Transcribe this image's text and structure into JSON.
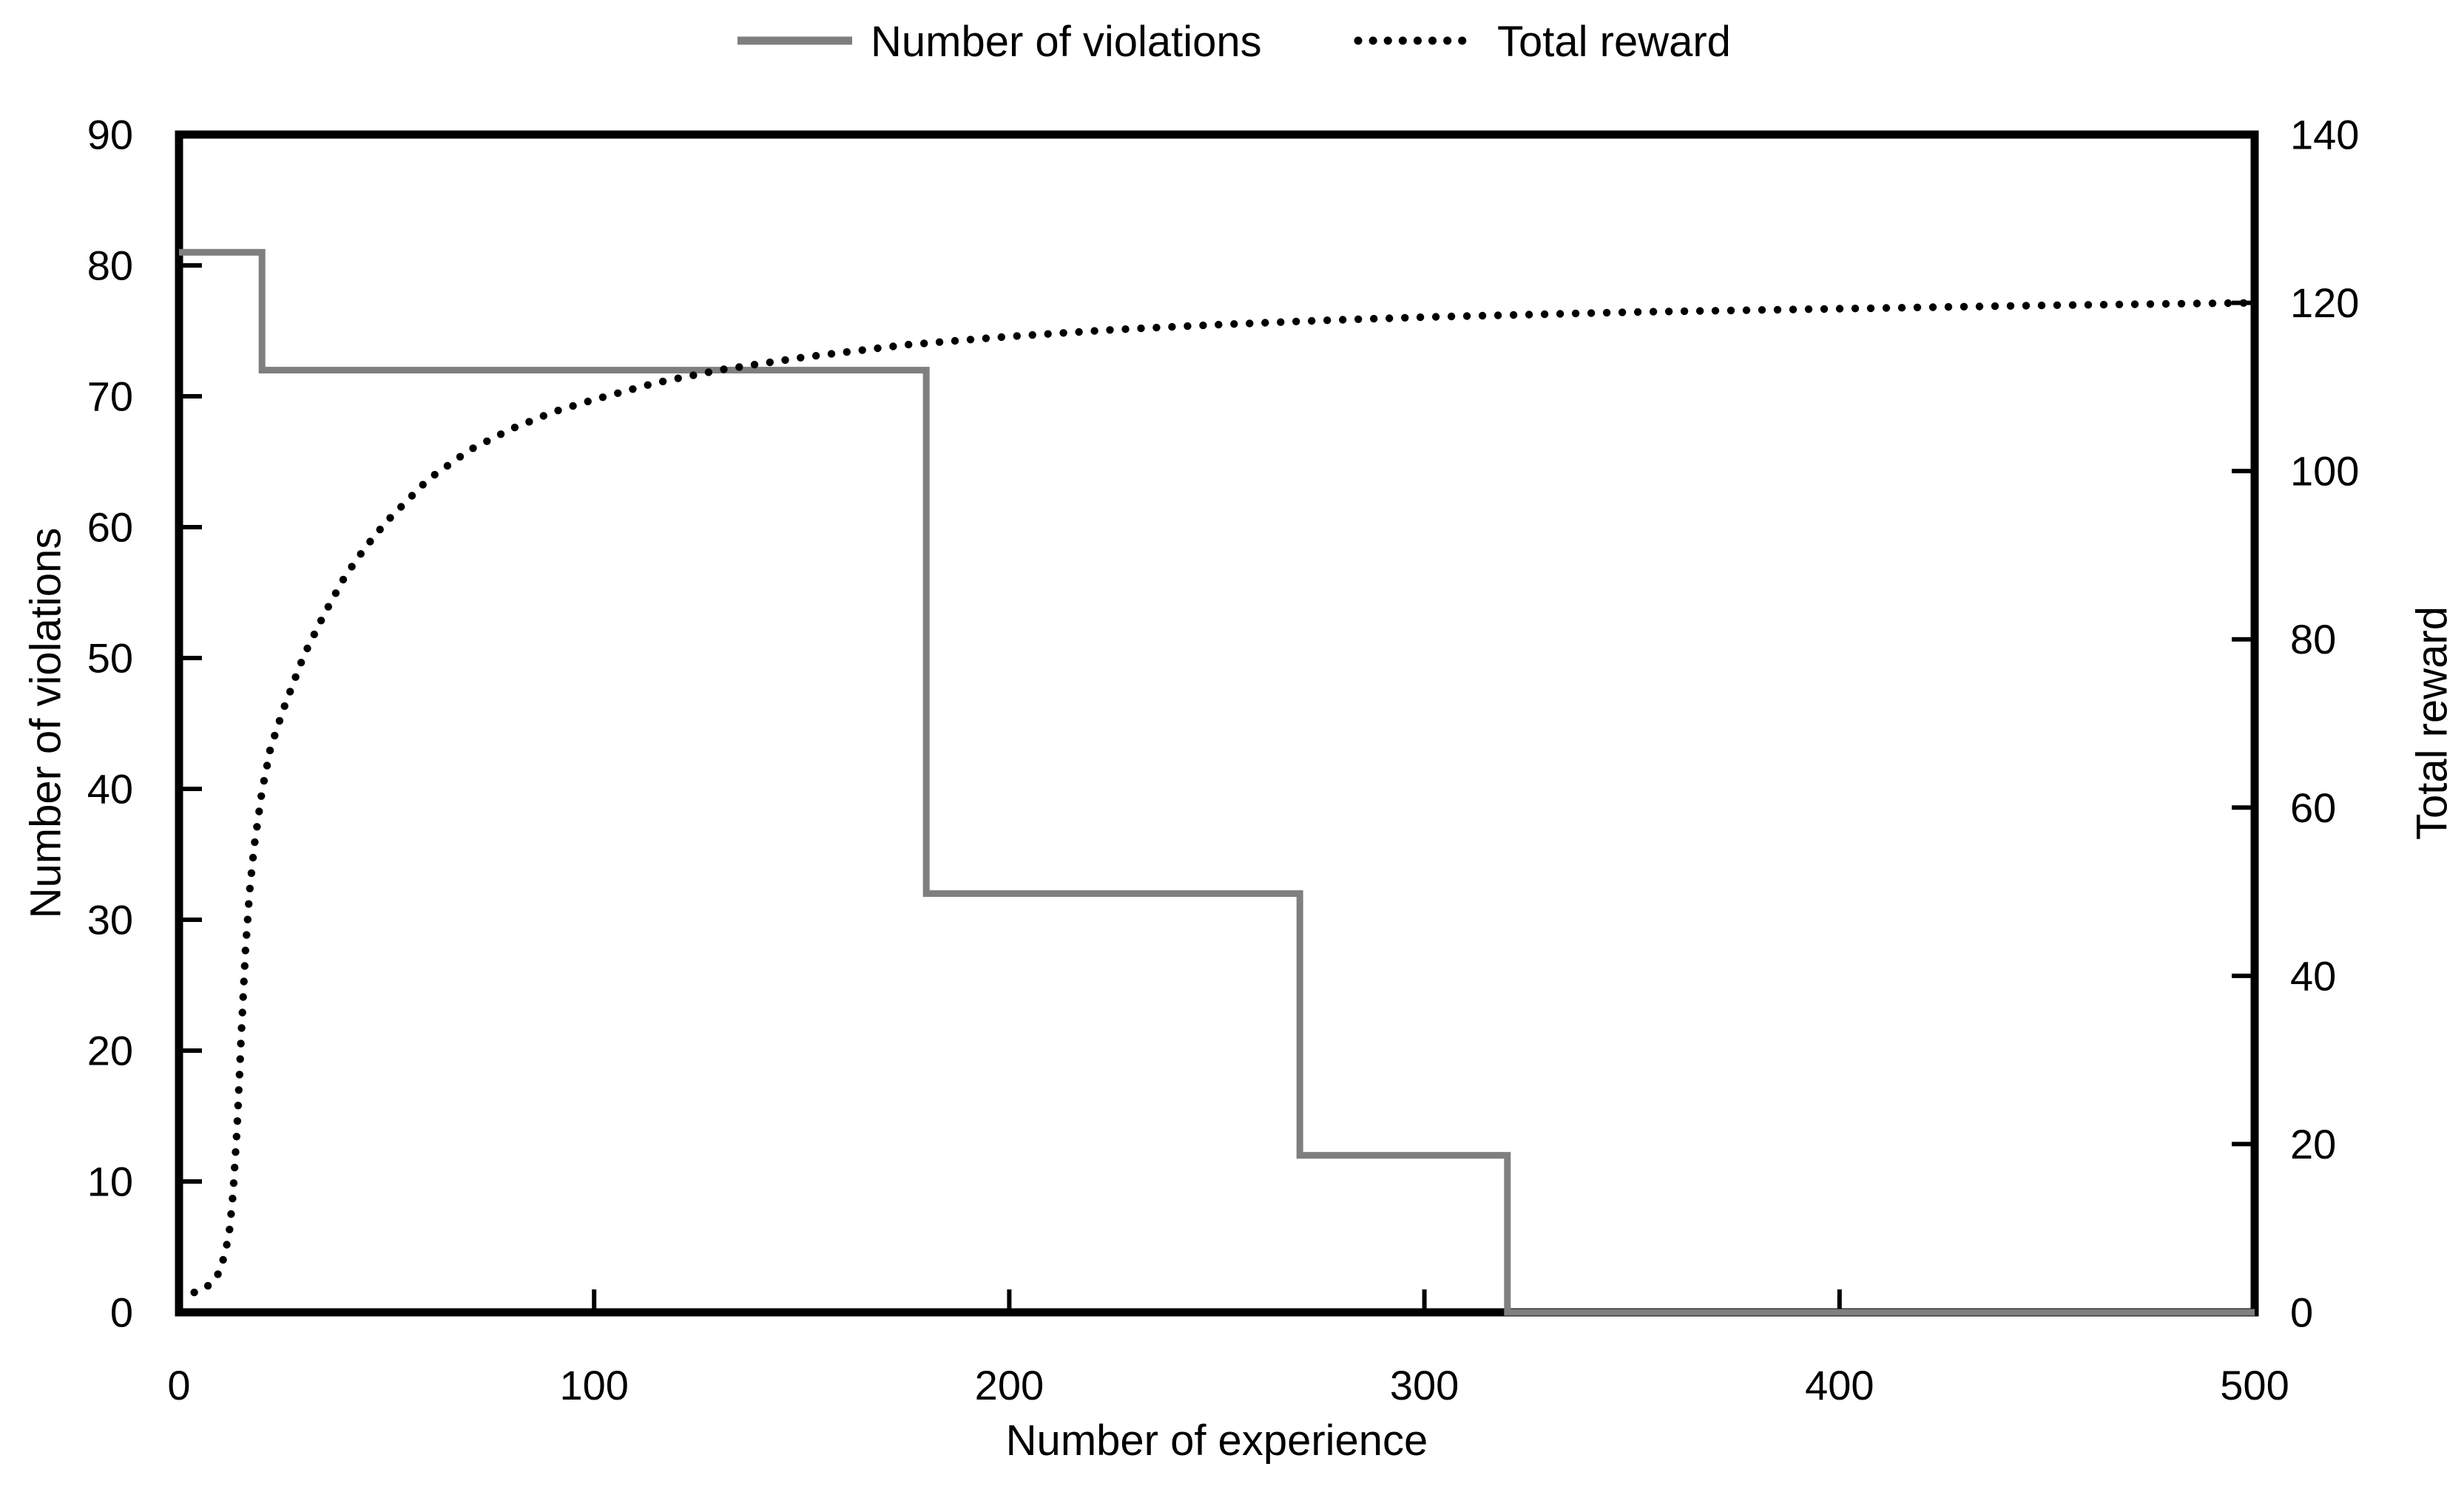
{
  "chart_data": {
    "type": "line",
    "title": "",
    "xlabel": "Number of experience",
    "ylabel_left": "Number of violations",
    "ylabel_right": "Total reward",
    "grid": false,
    "legend_position": "top-center",
    "axis_color": "#000000",
    "x_axis": {
      "min": 0,
      "max": 500,
      "tick_step": 100,
      "tick_labels": [
        "0",
        "100",
        "200",
        "300",
        "400",
        "500"
      ]
    },
    "y_axis_left": {
      "min": 0,
      "max": 90,
      "tick_step": 10,
      "tick_labels": [
        "0",
        "10",
        "20",
        "30",
        "40",
        "50",
        "60",
        "70",
        "80",
        "90"
      ]
    },
    "y_axis_right": {
      "min": 0,
      "max": 140,
      "tick_step": 20,
      "tick_labels": [
        "0",
        "20",
        "40",
        "60",
        "80",
        "100",
        "120",
        "140"
      ]
    },
    "series": [
      {
        "name": "Number of violations",
        "axis": "left",
        "style": "solid-step",
        "color": "#7f7f7f",
        "points": [
          [
            0,
            81
          ],
          [
            20,
            81
          ],
          [
            20,
            72
          ],
          [
            180,
            72
          ],
          [
            180,
            32
          ],
          [
            270,
            32
          ],
          [
            270,
            12
          ],
          [
            320,
            12
          ],
          [
            320,
            0
          ],
          [
            500,
            0
          ]
        ]
      },
      {
        "name": "Total reward",
        "axis": "right",
        "style": "dotted",
        "color": "#000000",
        "points": [
          [
            0,
            2
          ],
          [
            5,
            2.5
          ],
          [
            8,
            3.5
          ],
          [
            10,
            5
          ],
          [
            12,
            9
          ],
          [
            13,
            14
          ],
          [
            14,
            22
          ],
          [
            15,
            33
          ],
          [
            16,
            43
          ],
          [
            17,
            50
          ],
          [
            18,
            55
          ],
          [
            20,
            62
          ],
          [
            22,
            67
          ],
          [
            25,
            71.5
          ],
          [
            30,
            78
          ],
          [
            35,
            83
          ],
          [
            40,
            87.5
          ],
          [
            45,
            91
          ],
          [
            50,
            94
          ],
          [
            55,
            96.5
          ],
          [
            60,
            99
          ],
          [
            70,
            102.5
          ],
          [
            80,
            105
          ],
          [
            90,
            107
          ],
          [
            100,
            108.5
          ],
          [
            115,
            110.5
          ],
          [
            130,
            112
          ],
          [
            150,
            113.5
          ],
          [
            175,
            115
          ],
          [
            200,
            116
          ],
          [
            225,
            116.8
          ],
          [
            250,
            117.4
          ],
          [
            275,
            117.9
          ],
          [
            300,
            118.3
          ],
          [
            325,
            118.6
          ],
          [
            350,
            118.9
          ],
          [
            400,
            119.3
          ],
          [
            450,
            119.7
          ],
          [
            500,
            120
          ]
        ]
      }
    ]
  }
}
